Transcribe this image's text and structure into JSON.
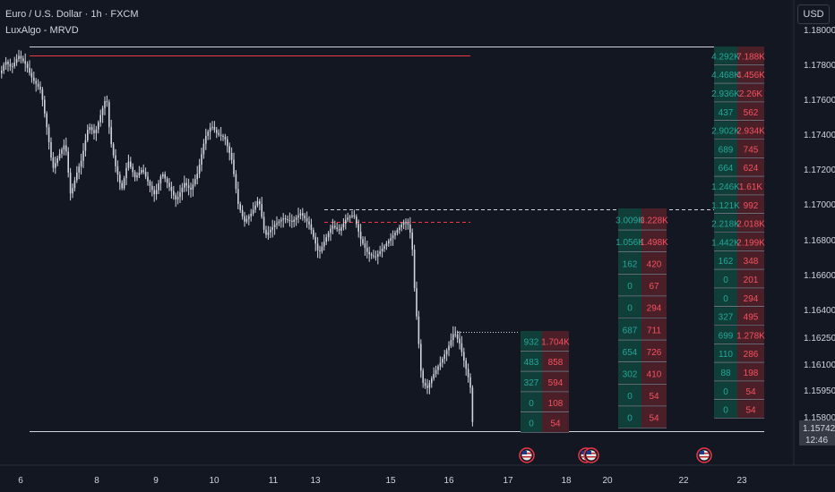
{
  "header": {
    "title": "Euro / U.S. Dollar · 1h · FXCM",
    "indicator": "LuxAlgo - MRVD"
  },
  "price_axis": {
    "unit_button": "USD"
  },
  "colors": {
    "bg": "#131722",
    "bull": "#089981",
    "bear": "#f23645",
    "candle": "#d1d4dc",
    "grid": "#2a2e39"
  },
  "current_price": {
    "value": "1.15742",
    "countdown": "12:46"
  },
  "event_icons": [
    "us-flag-icon",
    "us-flag-icon",
    "us-flag-icon",
    "us-flag-icon"
  ],
  "chart_data": {
    "type": "candlestick",
    "symbol": "EURUSD",
    "timeframe": "1h",
    "y_ticks": [
      "1.18000",
      "1.17800",
      "1.17600",
      "1.17400",
      "1.17200",
      "1.17000",
      "1.16800",
      "1.16600",
      "1.16400",
      "1.16250",
      "1.16100",
      "1.15950",
      "1.15800"
    ],
    "x_ticks": [
      "6",
      "8",
      "9",
      "10",
      "11",
      "13",
      "15",
      "16",
      "17",
      "18",
      "20",
      "22",
      "23"
    ],
    "ylim": [
      1.1565,
      1.1805
    ],
    "price_path": [
      [
        0,
        1.1775
      ],
      [
        5,
        1.1782
      ],
      [
        12,
        1.1778
      ],
      [
        20,
        1.1785
      ],
      [
        28,
        1.178
      ],
      [
        35,
        1.1772
      ],
      [
        45,
        1.1765
      ],
      [
        52,
        1.1742
      ],
      [
        58,
        1.172
      ],
      [
        65,
        1.1728
      ],
      [
        72,
        1.1735
      ],
      [
        78,
        1.1705
      ],
      [
        85,
        1.1718
      ],
      [
        90,
        1.1725
      ],
      [
        98,
        1.1745
      ],
      [
        105,
        1.174
      ],
      [
        112,
        1.1752
      ],
      [
        118,
        1.1762
      ],
      [
        122,
        1.1738
      ],
      [
        128,
        1.1722
      ],
      [
        135,
        1.1708
      ],
      [
        142,
        1.1725
      ],
      [
        150,
        1.1715
      ],
      [
        158,
        1.172
      ],
      [
        165,
        1.1712
      ],
      [
        172,
        1.1705
      ],
      [
        180,
        1.1718
      ],
      [
        188,
        1.171
      ],
      [
        196,
        1.1702
      ],
      [
        205,
        1.1712
      ],
      [
        212,
        1.1708
      ],
      [
        220,
        1.1718
      ],
      [
        228,
        1.1738
      ],
      [
        235,
        1.1745
      ],
      [
        242,
        1.174
      ],
      [
        250,
        1.1738
      ],
      [
        258,
        1.1725
      ],
      [
        265,
        1.17
      ],
      [
        272,
        1.169
      ],
      [
        280,
        1.1695
      ],
      [
        288,
        1.1703
      ],
      [
        295,
        1.1682
      ],
      [
        305,
        1.1688
      ],
      [
        315,
        1.1692
      ],
      [
        325,
        1.169
      ],
      [
        335,
        1.1695
      ],
      [
        345,
        1.1688
      ],
      [
        355,
        1.1672
      ],
      [
        362,
        1.168
      ],
      [
        370,
        1.1688
      ],
      [
        378,
        1.1685
      ],
      [
        386,
        1.1692
      ],
      [
        394,
        1.1694
      ],
      [
        402,
        1.168
      ],
      [
        410,
        1.1672
      ],
      [
        418,
        1.167
      ],
      [
        426,
        1.1675
      ],
      [
        434,
        1.168
      ],
      [
        442,
        1.1685
      ],
      [
        450,
        1.169
      ],
      [
        456,
        1.1688
      ],
      [
        460,
        1.1672
      ],
      [
        462,
        1.165
      ],
      [
        466,
        1.1625
      ],
      [
        470,
        1.16
      ],
      [
        476,
        1.1596
      ],
      [
        484,
        1.1605
      ],
      [
        492,
        1.1612
      ],
      [
        500,
        1.162
      ],
      [
        506,
        1.1628
      ],
      [
        512,
        1.1622
      ],
      [
        518,
        1.161
      ],
      [
        524,
        1.1598
      ],
      [
        527,
        1.1574
      ]
    ],
    "levels": [
      {
        "price": 1.179,
        "style": "solid",
        "color": "#d1d4dc"
      },
      {
        "price": 1.1785,
        "style": "solid",
        "color": "#f23645"
      },
      {
        "price": 1.1697,
        "style": "dashed",
        "color": "#d1d4dc"
      },
      {
        "price": 1.169,
        "style": "dashed",
        "color": "#f23645"
      },
      {
        "price": 1.1628,
        "style": "dotted",
        "color": "#d1d4dc"
      },
      {
        "price": 1.1572,
        "style": "solid",
        "color": "#d1d4dc"
      }
    ],
    "volume_profiles": [
      {
        "name": "profile-17",
        "rows": [
          [
            "932",
            "1.704K"
          ],
          [
            "483",
            "858"
          ],
          [
            "327",
            "594"
          ],
          [
            "0",
            "108"
          ],
          [
            "0",
            "54"
          ]
        ]
      },
      {
        "name": "profile-20",
        "rows": [
          [
            "3.009K",
            "3.228K"
          ],
          [
            "1.056K",
            "1.498K"
          ],
          [
            "162",
            "420"
          ],
          [
            "0",
            "67"
          ],
          [
            "0",
            "294"
          ],
          [
            "687",
            "711"
          ],
          [
            "654",
            "726"
          ],
          [
            "302",
            "410"
          ],
          [
            "0",
            "54"
          ],
          [
            "0",
            "54"
          ]
        ]
      },
      {
        "name": "profile-23",
        "rows": [
          [
            "4.292K",
            "7.188K"
          ],
          [
            "4.468K",
            "4.456K"
          ],
          [
            "2.936K",
            "2.26K"
          ],
          [
            "437",
            "562"
          ],
          [
            "2.902K",
            "2.934K"
          ],
          [
            "689",
            "745"
          ],
          [
            "664",
            "624"
          ],
          [
            "1.246K",
            "1.61K"
          ],
          [
            "1.121K",
            "992"
          ],
          [
            "2.218K",
            "2.018K"
          ],
          [
            "1.442K",
            "2.199K"
          ],
          [
            "162",
            "348"
          ],
          [
            "0",
            "201"
          ],
          [
            "0",
            "294"
          ],
          [
            "327",
            "495"
          ],
          [
            "699",
            "1.278K"
          ],
          [
            "110",
            "286"
          ],
          [
            "88",
            "198"
          ],
          [
            "0",
            "54"
          ],
          [
            "0",
            "54"
          ]
        ]
      }
    ]
  }
}
